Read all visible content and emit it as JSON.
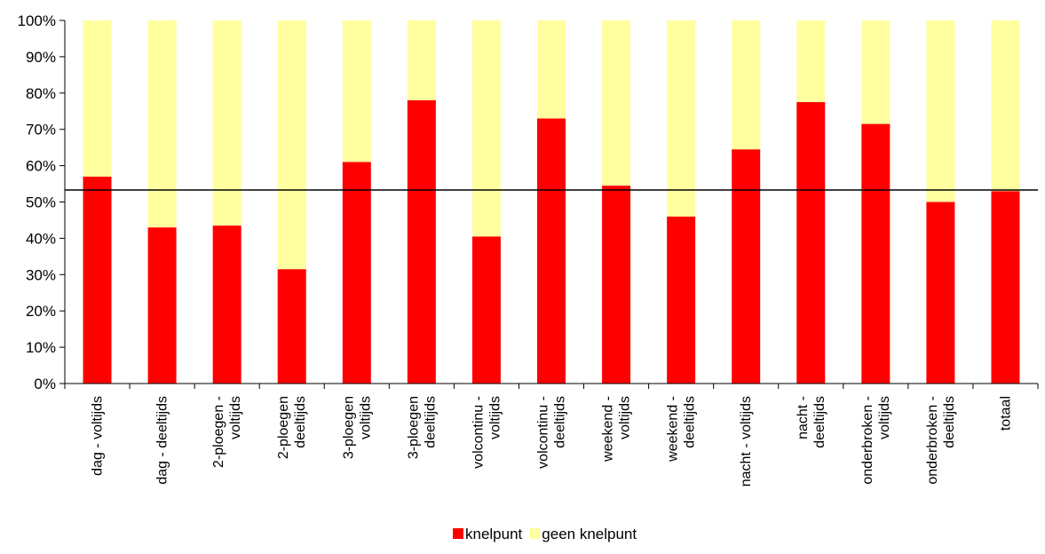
{
  "chart_data": {
    "type": "bar",
    "stacked": true,
    "categories": [
      [
        "dag - voltijds"
      ],
      [
        "dag - deeltijds"
      ],
      [
        "2-ploegen -",
        "voltijds"
      ],
      [
        "2-ploegen",
        "deeltijds"
      ],
      [
        "3-ploegen",
        "voltijds"
      ],
      [
        "3-ploegen",
        "deeltijds"
      ],
      [
        "volcontinu -",
        "voltijds"
      ],
      [
        "volcontinu -",
        "deeltijds"
      ],
      [
        "weekend -",
        "voltijds"
      ],
      [
        "weekend -",
        "deeltijds"
      ],
      [
        "nacht - voltijds"
      ],
      [
        "nacht -",
        "deeltijds"
      ],
      [
        "onderbroken -",
        "voltijds"
      ],
      [
        "onderbroken -",
        "deeltijds"
      ],
      [
        "totaal"
      ]
    ],
    "series": [
      {
        "name": "knelpunt",
        "color": "#ff0000",
        "values": [
          57,
          43,
          43.5,
          31.5,
          61,
          78,
          40.5,
          73,
          54.5,
          46,
          64.5,
          77.5,
          71.5,
          50,
          53
        ]
      },
      {
        "name": "geen knelpunt",
        "color": "#ffffa0",
        "values": [
          43,
          57,
          56.5,
          68.5,
          39,
          22,
          59.5,
          27,
          45.5,
          54,
          35.5,
          22.5,
          28.5,
          50,
          47
        ]
      }
    ],
    "reference_line": {
      "value": 53.3,
      "color": "#000000"
    },
    "y_ticks": [
      "0%",
      "10%",
      "20%",
      "30%",
      "40%",
      "50%",
      "60%",
      "70%",
      "80%",
      "90%",
      "100%"
    ],
    "ylim": [
      0,
      100
    ],
    "grid": false,
    "legend_position": "bottom-center"
  }
}
